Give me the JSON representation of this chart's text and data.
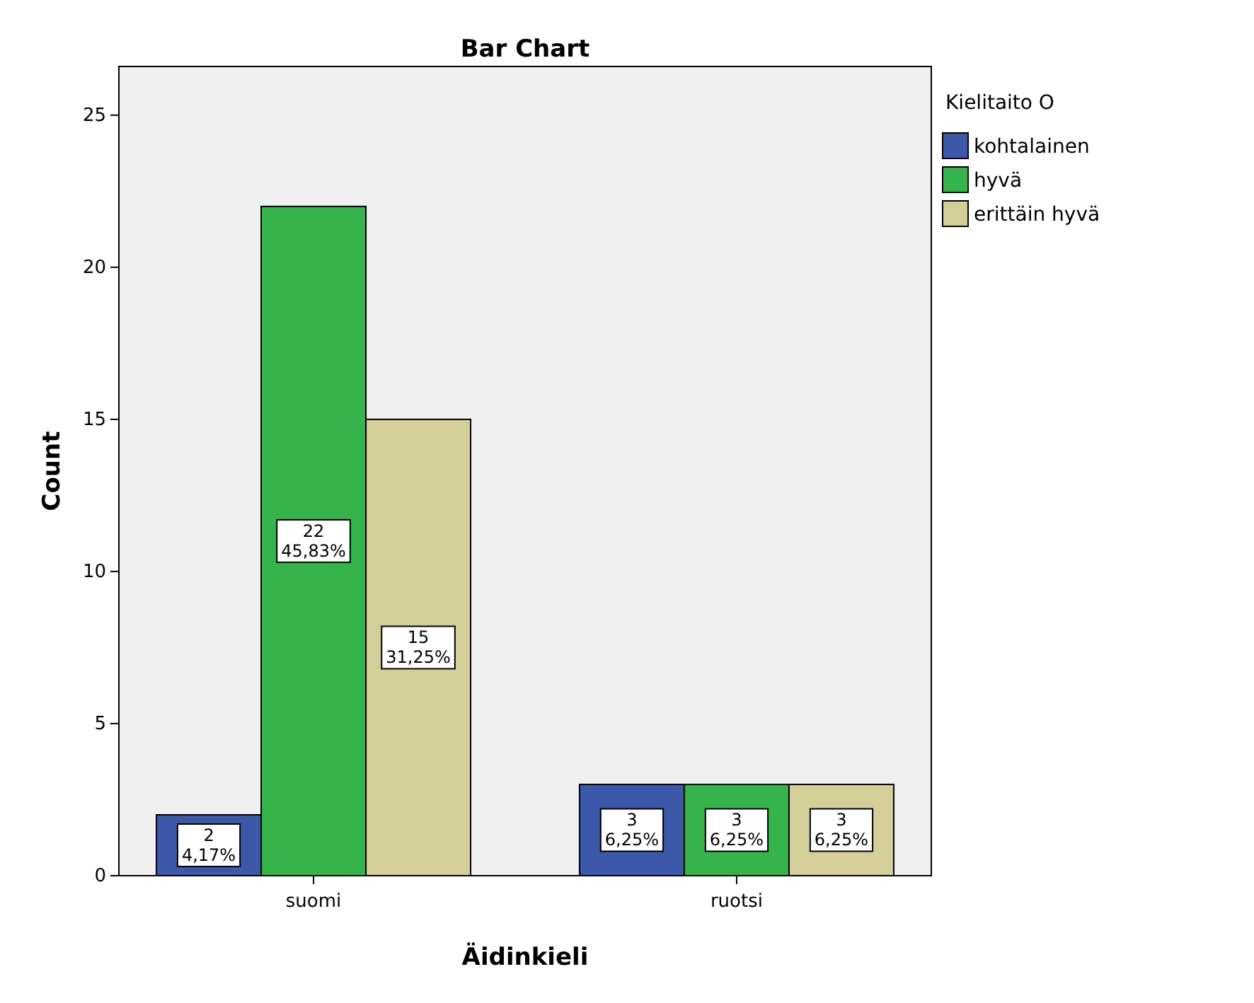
{
  "chart_data": {
    "type": "bar",
    "title": "Bar Chart",
    "xlabel": "Äidinkieli",
    "ylabel": "Count",
    "legend_title": "Kielitaito O",
    "categories": [
      "suomi",
      "ruotsi"
    ],
    "series": [
      {
        "name": "kohtalainen",
        "color": "#3c58a8",
        "values": [
          2,
          3
        ],
        "value_labels": [
          "2\n4,17%",
          "3\n6,25%"
        ]
      },
      {
        "name": "hyvä",
        "color": "#34b44a",
        "values": [
          22,
          3
        ],
        "value_labels": [
          "22\n45,83%",
          "3\n6,25%"
        ]
      },
      {
        "name": "erittäin hyvä",
        "color": "#d4cf98",
        "values": [
          15,
          3
        ],
        "value_labels": [
          "15\n31,25%",
          "3\n6,25%"
        ]
      }
    ],
    "ylim": [
      0,
      26.6
    ],
    "yticks": [
      0,
      5,
      10,
      15,
      20,
      25
    ],
    "grid": false,
    "legend": "top right"
  }
}
